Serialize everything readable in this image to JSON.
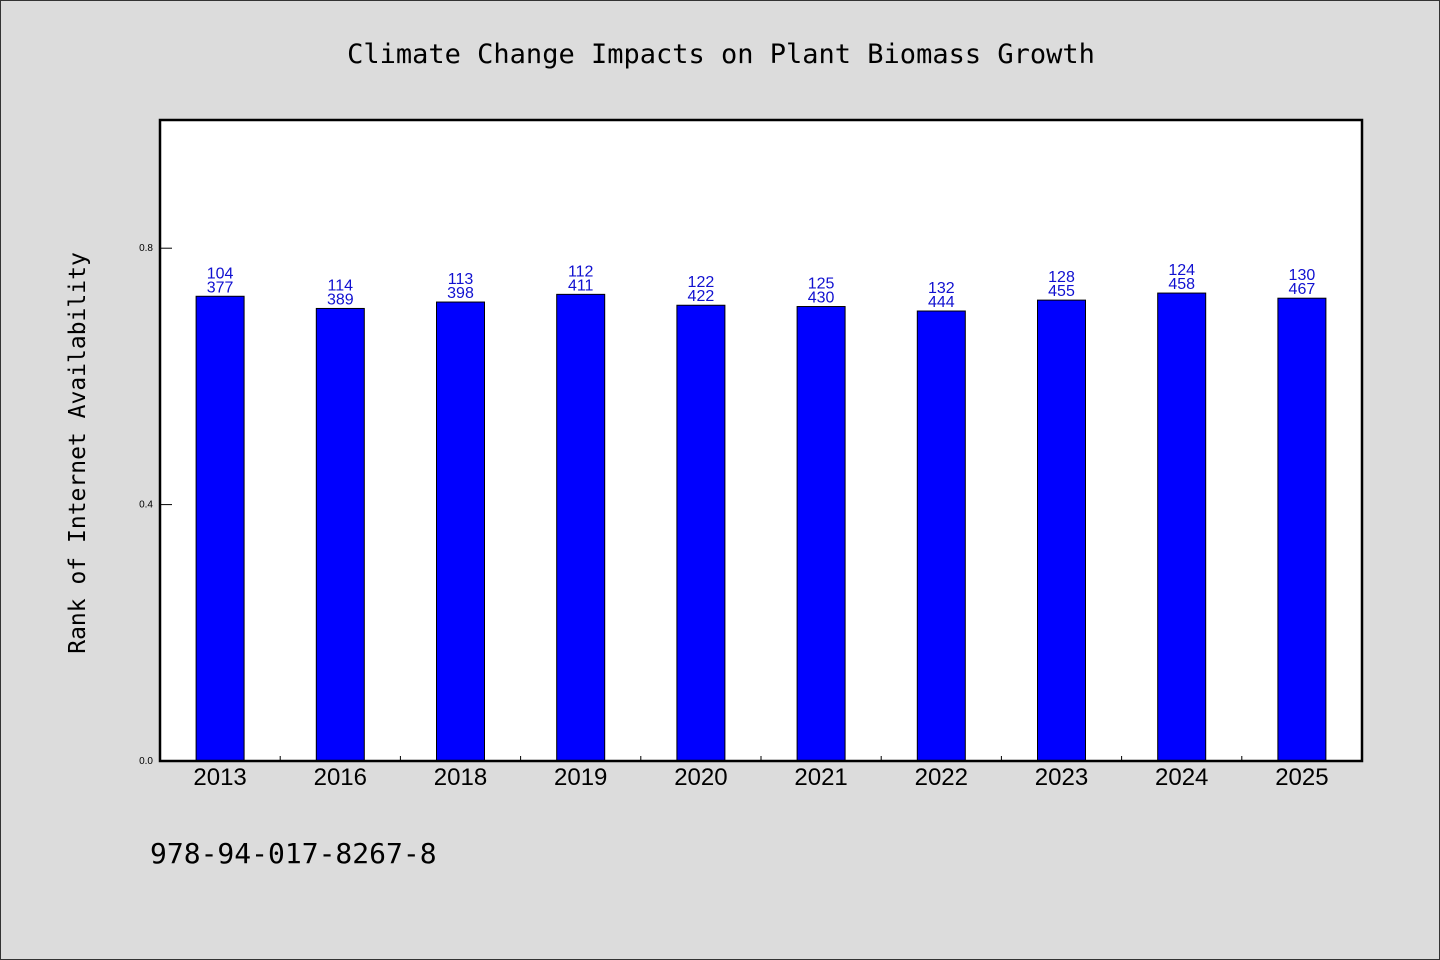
{
  "footnote": "978-94-017-8267-8",
  "chart_data": {
    "type": "bar",
    "title": "Climate Change Impacts on Plant Biomass Growth",
    "xlabel": "",
    "ylabel": "Rank of Internet Availability",
    "categories": [
      "2013",
      "2016",
      "2018",
      "2019",
      "2020",
      "2021",
      "2022",
      "2023",
      "2024",
      "2025"
    ],
    "values": [
      0.725,
      0.706,
      0.716,
      0.728,
      0.711,
      0.709,
      0.702,
      0.719,
      0.73,
      0.722
    ],
    "labels_top": [
      "104",
      "114",
      "113",
      "112",
      "122",
      "125",
      "132",
      "128",
      "124",
      "130"
    ],
    "labels_bottom": [
      "377",
      "389",
      "398",
      "411",
      "422",
      "430",
      "444",
      "455",
      "458",
      "467"
    ],
    "ylim": [
      0.0,
      1.0
    ],
    "yticks": [
      0.0,
      0.4,
      0.8
    ],
    "ytick_labels": [
      "0.0",
      "0.4",
      "0.8"
    ],
    "bar_color": "#0000ff",
    "label_color": "#1010d0",
    "grid": false,
    "legend": "none"
  }
}
